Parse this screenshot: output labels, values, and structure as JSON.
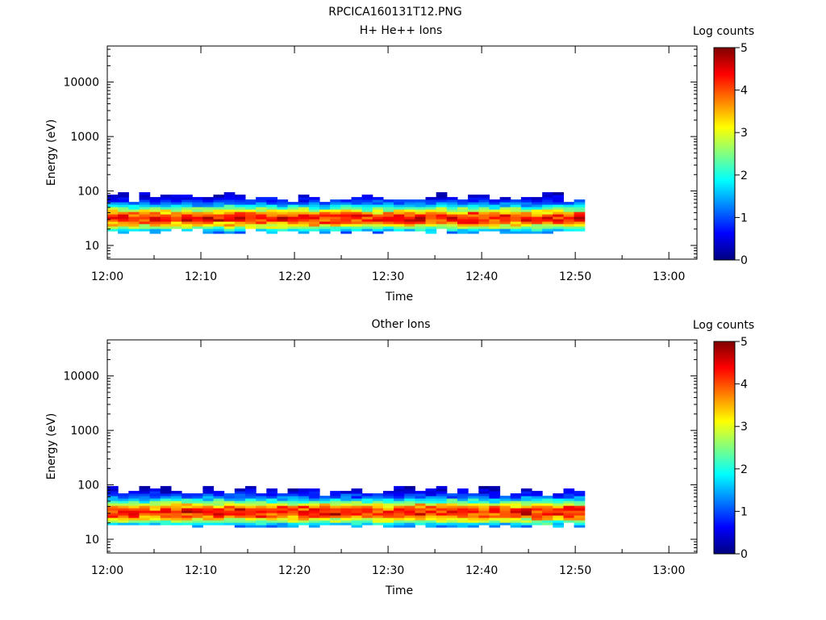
{
  "figure": {
    "title": "RPCICA160131T12.PNG"
  },
  "colormap": [
    "#00007f",
    "#0000ff",
    "#0080ff",
    "#00ffff",
    "#80ff80",
    "#ffff00",
    "#ff8000",
    "#ff0000",
    "#7f0000"
  ],
  "chart_data": [
    {
      "type": "heatmap",
      "title": "H+ He++ Ions",
      "xlabel": "Time",
      "ylabel": "Energy (eV)",
      "x_ticks": [
        "12:00",
        "12:10",
        "12:20",
        "12:30",
        "12:40",
        "12:50",
        "13:00"
      ],
      "y_ticks": [
        "10",
        "100",
        "1000",
        "10000"
      ],
      "y_scale": "log",
      "y_range": [
        5.6,
        46000
      ],
      "x_range_minutes": [
        0,
        63
      ],
      "colorbar": {
        "label": "Log counts",
        "ticks": [
          "0",
          "1",
          "2",
          "3",
          "4",
          "5"
        ],
        "range": [
          0,
          5
        ]
      },
      "grid": false,
      "data": {
        "time_bins_minutes": [
          0,
          51
        ],
        "energy_bins_eV": [
          15,
          95
        ],
        "profile": "peak ~3.5-4.5 log counts near 30-40 eV",
        "seed": 17
      }
    },
    {
      "type": "heatmap",
      "title": "Other Ions",
      "xlabel": "Time",
      "ylabel": "Energy (eV)",
      "x_ticks": [
        "12:00",
        "12:10",
        "12:20",
        "12:30",
        "12:40",
        "12:50",
        "13:00"
      ],
      "y_ticks": [
        "10",
        "100",
        "1000",
        "10000"
      ],
      "y_scale": "log",
      "y_range": [
        5.6,
        46000
      ],
      "x_range_minutes": [
        0,
        63
      ],
      "colorbar": {
        "label": "Log counts",
        "ticks": [
          "0",
          "1",
          "2",
          "3",
          "4",
          "5"
        ],
        "range": [
          0,
          5
        ]
      },
      "grid": false,
      "data": {
        "time_bins_minutes": [
          0,
          51
        ],
        "energy_bins_eV": [
          15,
          95
        ],
        "profile": "peak ~3.5-4.6 log counts near 30-40 eV",
        "seed": 29
      }
    }
  ]
}
